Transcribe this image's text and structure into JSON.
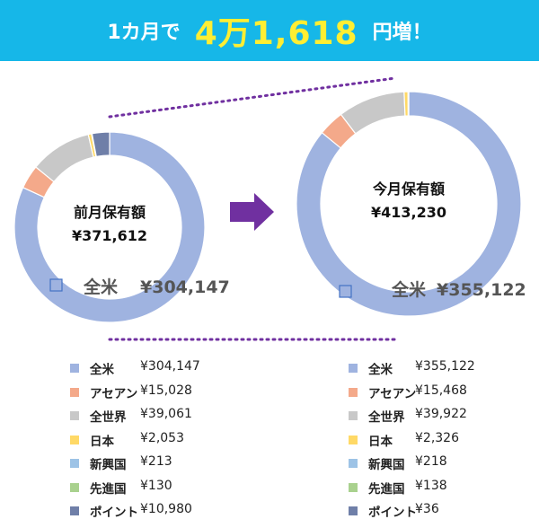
{
  "banner": {
    "prefix": "1カ月で",
    "amount": "4万1,618",
    "suffix": "円増！"
  },
  "colors": {
    "banner_bg": "#16b7e8",
    "banner_amount": "#ffee33",
    "arrow": "#7030a0",
    "zoom_lines": "#7030a0"
  },
  "chart_data": [
    {
      "type": "pie",
      "title": "前月保有額",
      "total": "¥371,612",
      "highlight": {
        "label": "全米",
        "value_text": "¥304,147"
      },
      "slices": [
        {
          "label": "全米",
          "value": 304147,
          "value_text": "¥304,147",
          "color": "#9fb3e0"
        },
        {
          "label": "アセアン",
          "value": 15028,
          "value_text": "¥15,028",
          "color": "#f4a98a"
        },
        {
          "label": "全世界",
          "value": 39061,
          "value_text": "¥39,061",
          "color": "#c8c8c8"
        },
        {
          "label": "日本",
          "value": 2053,
          "value_text": "¥2,053",
          "color": "#ffd966"
        },
        {
          "label": "新興国",
          "value": 213,
          "value_text": "¥213",
          "color": "#9dc3e6"
        },
        {
          "label": "先進国",
          "value": 130,
          "value_text": "¥130",
          "color": "#a9d18e"
        },
        {
          "label": "ポイント",
          "value": 10980,
          "value_text": "¥10,980",
          "color": "#6f7fa8"
        }
      ]
    },
    {
      "type": "pie",
      "title": "今月保有額",
      "total": "¥413,230",
      "highlight": {
        "label": "全米",
        "value_text": "¥355,122"
      },
      "slices": [
        {
          "label": "全米",
          "value": 355122,
          "value_text": "¥355,122",
          "color": "#9fb3e0"
        },
        {
          "label": "アセアン",
          "value": 15468,
          "value_text": "¥15,468",
          "color": "#f4a98a"
        },
        {
          "label": "全世界",
          "value": 39922,
          "value_text": "¥39,922",
          "color": "#c8c8c8"
        },
        {
          "label": "日本",
          "value": 2326,
          "value_text": "¥2,326",
          "color": "#ffd966"
        },
        {
          "label": "新興国",
          "value": 218,
          "value_text": "¥218",
          "color": "#9dc3e6"
        },
        {
          "label": "先進国",
          "value": 138,
          "value_text": "¥138",
          "color": "#a9d18e"
        },
        {
          "label": "ポイント",
          "value": 36,
          "value_text": "¥36",
          "color": "#6f7fa8"
        }
      ]
    }
  ]
}
